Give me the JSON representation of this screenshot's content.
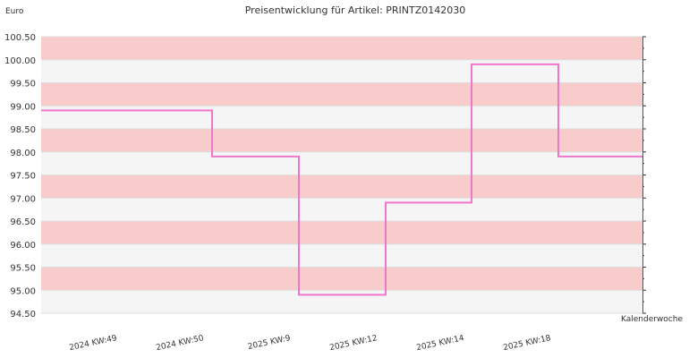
{
  "chart_data": {
    "type": "line",
    "step": true,
    "title": "Preisentwicklung für Artikel: PRINTZ0142030",
    "ylabel": "Euro",
    "xlabel": "Kalenderwoche",
    "ylim": [
      94.5,
      100.5
    ],
    "yticks": [
      "100.50",
      "100.00",
      "99.50",
      "99.00",
      "98.50",
      "98.00",
      "97.50",
      "97.00",
      "96.50",
      "96.00",
      "95.50",
      "95.00",
      "94.50"
    ],
    "categories": [
      "2024 KW:49",
      "2024 KW:50",
      "2025 KW:9",
      "2025 KW:12",
      "2025 KW:14",
      "2025 KW:18"
    ],
    "values": [
      98.9,
      97.9,
      94.9,
      96.9,
      99.9,
      97.9
    ],
    "grid": true,
    "band_colors": [
      "#f9cccc",
      "#f5f5f5"
    ],
    "line_color": "#ee77cc"
  }
}
